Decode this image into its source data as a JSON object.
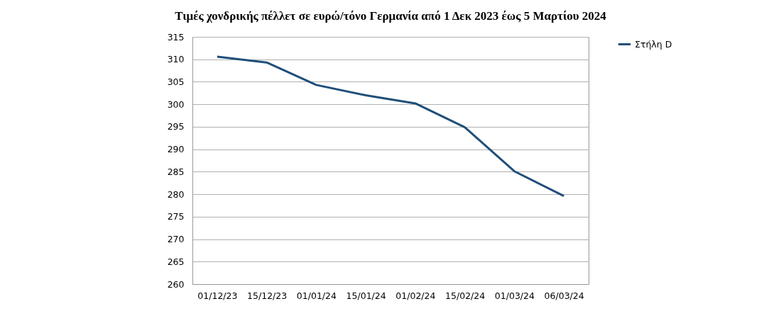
{
  "chart_data": {
    "type": "line",
    "title": "Τιμές χονδρικής πέλλετ  σε ευρώ/τόνο Γερμανία από 1 Δεκ 2023 έως 5 Μαρτίου 2024",
    "categories": [
      "01/12/23",
      "15/12/23",
      "01/01/24",
      "15/01/24",
      "01/02/24",
      "15/02/24",
      "01/03/24",
      "06/03/24"
    ],
    "series": [
      {
        "name": "Στήλη D",
        "color": "#1f4e79",
        "values": [
          310.6,
          309.3,
          304.3,
          302.0,
          300.2,
          294.9,
          285.1,
          279.6
        ]
      }
    ],
    "ylim": [
      260,
      315
    ],
    "yticks": [
      260,
      265,
      270,
      275,
      280,
      285,
      290,
      295,
      300,
      305,
      310,
      315
    ],
    "grid": "y",
    "legend": "right",
    "marker": "none",
    "line_style": "solid"
  }
}
